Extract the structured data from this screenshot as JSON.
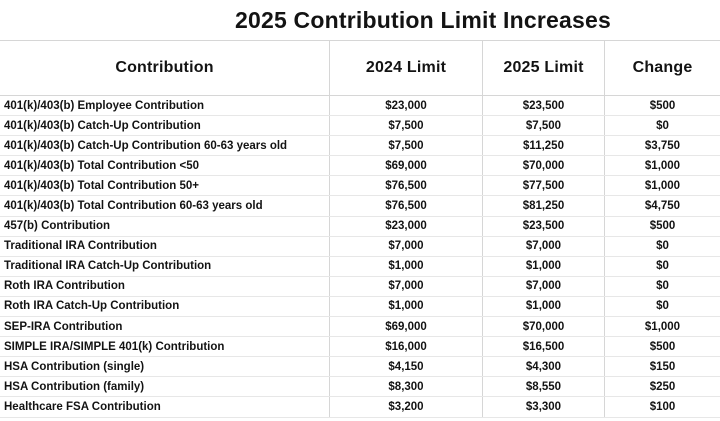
{
  "title": "2025 Contribution Limit Increases",
  "colors": {
    "background": "#ffffff",
    "text": "#131313",
    "gridline_vertical": "#d6d6d6",
    "gridline_horizontal": "#e7e7e7"
  },
  "chart_data": {
    "type": "table",
    "title": "2025 Contribution Limit Increases",
    "columns": [
      "Contribution",
      "2024 Limit",
      "2025 Limit",
      "Change"
    ],
    "rows": [
      [
        "401(k)/403(b) Employee Contribution",
        "$23,000",
        "$23,500",
        "$500"
      ],
      [
        "401(k)/403(b) Catch-Up Contribution",
        "$7,500",
        "$7,500",
        "$0"
      ],
      [
        "401(k)/403(b) Catch-Up Contribution 60-63 years old",
        "$7,500",
        "$11,250",
        "$3,750"
      ],
      [
        "401(k)/403(b) Total Contribution <50",
        "$69,000",
        "$70,000",
        "$1,000"
      ],
      [
        "401(k)/403(b) Total Contribution 50+",
        "$76,500",
        "$77,500",
        "$1,000"
      ],
      [
        "401(k)/403(b) Total Contribution 60-63 years old",
        "$76,500",
        "$81,250",
        "$4,750"
      ],
      [
        "457(b) Contribution",
        "$23,000",
        "$23,500",
        "$500"
      ],
      [
        "Traditional IRA Contribution",
        "$7,000",
        "$7,000",
        "$0"
      ],
      [
        "Traditional IRA Catch-Up Contribution",
        "$1,000",
        "$1,000",
        "$0"
      ],
      [
        "Roth IRA Contribution",
        "$7,000",
        "$7,000",
        "$0"
      ],
      [
        "Roth IRA Catch-Up Contribution",
        "$1,000",
        "$1,000",
        "$0"
      ],
      [
        "SEP-IRA Contribution",
        "$69,000",
        "$70,000",
        "$1,000"
      ],
      [
        "SIMPLE IRA/SIMPLE 401(k) Contribution",
        "$16,000",
        "$16,500",
        "$500"
      ],
      [
        "HSA Contribution (single)",
        "$4,150",
        "$4,300",
        "$150"
      ],
      [
        "HSA Contribution (family)",
        "$8,300",
        "$8,550",
        "$250"
      ],
      [
        "Healthcare FSA Contribution",
        "$3,200",
        "$3,300",
        "$100"
      ]
    ]
  }
}
